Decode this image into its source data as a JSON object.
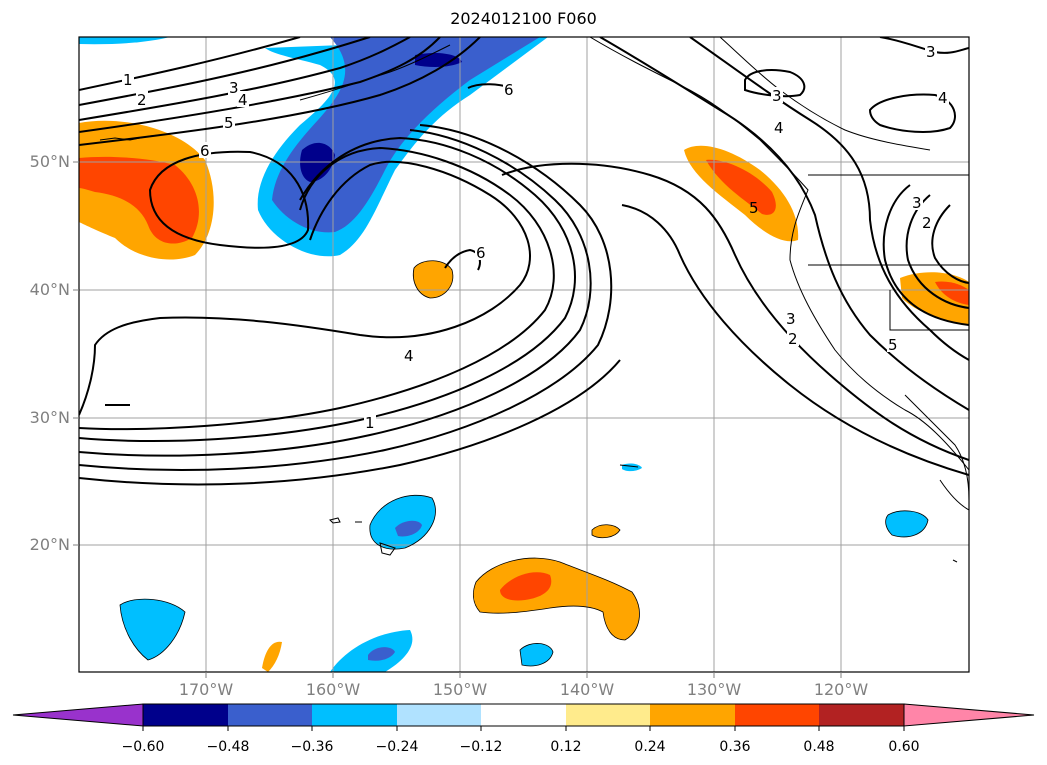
{
  "title": "2024012100 F060",
  "lat_labels": [
    "50°N",
    "40°N",
    "30°N",
    "20°N"
  ],
  "lon_labels": [
    "170°W",
    "160°W",
    "150°W",
    "140°W",
    "130°W",
    "120°W"
  ],
  "colorbar": {
    "ticks": [
      "−0.60",
      "−0.48",
      "−0.36",
      "−0.24",
      "−0.12",
      "0.12",
      "0.24",
      "0.36",
      "0.48",
      "0.60"
    ],
    "colors": [
      "#9932cc",
      "#00008b",
      "#3a5fcd",
      "#00bfff",
      "#b0e2ff",
      "#ffffff",
      "#ffeb8c",
      "#ffa500",
      "#ff4500",
      "#b22222",
      "#ff85a8"
    ]
  },
  "contour_labels": {
    "north_pacific": [
      "1",
      "2",
      "3",
      "4",
      "5",
      "6"
    ],
    "central": [
      "6",
      "4",
      "1"
    ],
    "top": [
      "6"
    ],
    "alaska": [
      "3",
      "3",
      "4",
      "4"
    ],
    "west_coast": [
      "5",
      "3",
      "2",
      "5"
    ],
    "rockies": [
      "3",
      "2"
    ]
  }
}
